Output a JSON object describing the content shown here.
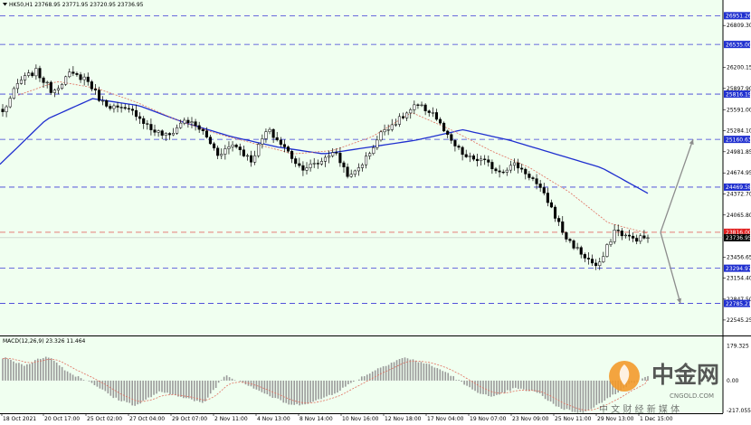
{
  "header": {
    "symbol_line": "HK50,H1 23768.95 23771.95 23720.95 23736.95",
    "macd_label": "MACD(12,26,9) 23.326 11.464"
  },
  "colors": {
    "background": "#f0fff0",
    "candle": "#000000",
    "ma_fast": "#e07060",
    "ma_slow": "#1f2fcf",
    "hline": "#3b3bd6",
    "resistance_line": "#e05050",
    "arrow": "#8c8c8c",
    "macd_hist": "#9a9a9a",
    "macd_signal": "#e07060",
    "tag_blue": "#1f2fcf",
    "tag_red": "#e02020",
    "tag_black": "#000000"
  },
  "watermark": {
    "name": "中金网",
    "sub": "中 文 财 经 新 媒 体",
    "url": "CNGOLD.COM"
  },
  "chart_data": [
    {
      "type": "candlestick",
      "series_name": "HK50,H1",
      "ohlc_last": {
        "open": 23768.95,
        "high": 23771.95,
        "low": 23720.95,
        "close": 23736.95
      },
      "ylim": [
        22400,
        27100
      ],
      "y_ticks": [
        "26809.30",
        "26200.15",
        "25897.90",
        "25591.00",
        "25284.10",
        "24981.85",
        "24674.95",
        "24372.70",
        "24065.80",
        "23456.65",
        "23154.40",
        "22847.50",
        "22545.25"
      ],
      "x_ticks": [
        "18 Oct 2021",
        "20 Oct 17:00",
        "25 Oct 02:00",
        "27 Oct 04:00",
        "29 Oct 07:00",
        "2 Nov 11:00",
        "4 Nov 13:00",
        "8 Nov 14:00",
        "10 Nov 16:00",
        "12 Nov 18:00",
        "17 Nov 04:00",
        "19 Nov 07:00",
        "23 Nov 09:00",
        "25 Nov 11:00",
        "29 Nov 13:00",
        "1 Dec 15:00"
      ],
      "horizontal_levels": [
        {
          "value": "26951.26",
          "color": "blue"
        },
        {
          "value": "26535.00",
          "color": "blue"
        },
        {
          "value": "25816.19",
          "color": "blue"
        },
        {
          "value": "25160.63",
          "color": "blue"
        },
        {
          "value": "24469.58",
          "color": "blue"
        },
        {
          "value": "23816.00",
          "color": "red"
        },
        {
          "value": "23736.95",
          "color": "black"
        },
        {
          "value": "23294.97",
          "color": "blue"
        },
        {
          "value": "22785.21",
          "color": "blue"
        }
      ],
      "close_path": [
        25550,
        26000,
        26150,
        25850,
        26100,
        26050,
        25700,
        25600,
        25550,
        25300,
        25200,
        25450,
        25300,
        24950,
        25100,
        24850,
        25300,
        25050,
        24750,
        24800,
        25000,
        24600,
        24900,
        25300,
        25450,
        25650,
        25550,
        25150,
        24900,
        24850,
        24700,
        24800,
        24600,
        24250,
        23750,
        23500,
        23300,
        23850,
        23720,
        23736.95
      ],
      "ma_slow_path": [
        24800,
        25450,
        25750,
        25650,
        25400,
        25200,
        25050,
        24950,
        25050,
        25150,
        25300,
        25150,
        24950,
        24750,
        24380
      ],
      "ma_fast_path": [
        25800,
        26000,
        25900,
        25700,
        25450,
        25250,
        25100,
        24950,
        25000,
        25200,
        25550,
        25300,
        25000,
        24750,
        24400,
        23950,
        23800
      ],
      "projection": [
        {
          "from": 23816,
          "to": 25160.63,
          "direction": "up"
        },
        {
          "from": 23816,
          "to": 22785.21,
          "direction": "down"
        }
      ]
    },
    {
      "type": "macd",
      "title": "MACD(12,26,9) 23.326 11.464",
      "params": [
        12,
        26,
        9
      ],
      "macd": 23.326,
      "signal": 11.464,
      "ylim": [
        -160,
        220
      ],
      "y_ticks": [
        "179.325",
        "0.00",
        "-217.055"
      ],
      "hist_path": [
        120,
        80,
        130,
        40,
        -10,
        -90,
        -130,
        -60,
        -80,
        -120,
        30,
        -20,
        -80,
        -130,
        -110,
        -60,
        10,
        70,
        120,
        90,
        40,
        -40,
        -90,
        -40,
        -60,
        -140,
        -170,
        -110,
        -30,
        20
      ]
    }
  ]
}
